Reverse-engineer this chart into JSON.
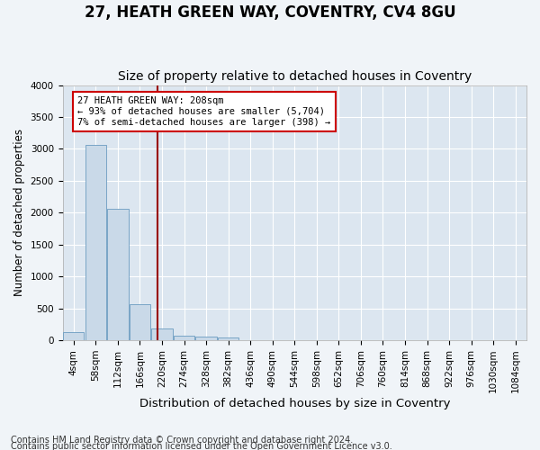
{
  "title": "27, HEATH GREEN WAY, COVENTRY, CV4 8GU",
  "subtitle": "Size of property relative to detached houses in Coventry",
  "xlabel": "Distribution of detached houses by size in Coventry",
  "ylabel": "Number of detached properties",
  "bin_labels": [
    "4sqm",
    "58sqm",
    "112sqm",
    "166sqm",
    "220sqm",
    "274sqm",
    "328sqm",
    "382sqm",
    "436sqm",
    "490sqm",
    "544sqm",
    "598sqm",
    "652sqm",
    "706sqm",
    "760sqm",
    "814sqm",
    "868sqm",
    "922sqm",
    "976sqm",
    "1030sqm",
    "1084sqm"
  ],
  "bar_values": [
    130,
    3060,
    2060,
    570,
    190,
    75,
    55,
    45,
    0,
    0,
    0,
    0,
    0,
    0,
    0,
    0,
    0,
    0,
    0,
    0,
    0
  ],
  "bar_color": "#c9d9e8",
  "bar_edge_color": "#6a9cc0",
  "vline_color": "#990000",
  "annotation_text": "27 HEATH GREEN WAY: 208sqm\n← 93% of detached houses are smaller (5,704)\n7% of semi-detached houses are larger (398) →",
  "annotation_box_color": "#ffffff",
  "annotation_box_edge": "#cc0000",
  "ylim": [
    0,
    4000
  ],
  "yticks": [
    0,
    500,
    1000,
    1500,
    2000,
    2500,
    3000,
    3500,
    4000
  ],
  "footnote1": "Contains HM Land Registry data © Crown copyright and database right 2024.",
  "footnote2": "Contains public sector information licensed under the Open Government Licence v3.0.",
  "title_fontsize": 12,
  "subtitle_fontsize": 10,
  "xlabel_fontsize": 9.5,
  "ylabel_fontsize": 8.5,
  "tick_fontsize": 7.5,
  "footnote_fontsize": 7,
  "fig_bg_color": "#f0f4f8",
  "plot_bg_color": "#dce6f0"
}
